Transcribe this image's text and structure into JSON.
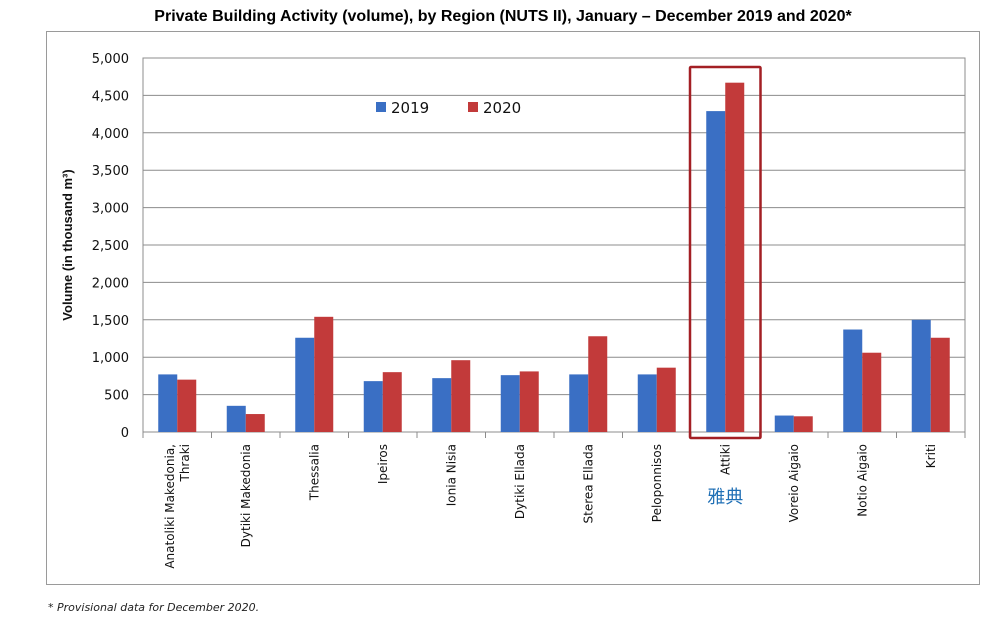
{
  "chart_data": {
    "type": "bar",
    "title": "Private Building Activity (volume), by Region (NUTS II), January – December 2019 and 2020*",
    "ylabel": "Volume (in thousand m³)",
    "xlabel": "",
    "ylim": [
      0,
      5000
    ],
    "yticks": [
      0,
      500,
      1000,
      1500,
      2000,
      2500,
      3000,
      3500,
      4000,
      4500,
      5000
    ],
    "ytick_labels": [
      "0",
      "500",
      "1,000",
      "1,500",
      "2,000",
      "2,500",
      "3,000",
      "3,500",
      "4,000",
      "4,500",
      "5,000"
    ],
    "grid": true,
    "legend_position": "top-left",
    "categories": [
      [
        "Anatoliki Makedonia,",
        "Thraki"
      ],
      [
        "Dytiki Makedonia"
      ],
      [
        "Thessalia"
      ],
      [
        "Ipeiros"
      ],
      [
        "Ionia Nisia"
      ],
      [
        "Dytiki Ellada"
      ],
      [
        "Sterea Ellada"
      ],
      [
        "Peloponnisos"
      ],
      [
        "Attiki"
      ],
      [
        "Voreio Aigaio"
      ],
      [
        "Notio Aigaio"
      ],
      [
        "Kriti"
      ]
    ],
    "series": [
      {
        "name": "2019",
        "color": "#3a6fc4",
        "values": [
          770,
          350,
          1260,
          680,
          720,
          760,
          770,
          770,
          4290,
          220,
          1370,
          1500
        ]
      },
      {
        "name": "2020",
        "color": "#c23a3a",
        "values": [
          700,
          240,
          1540,
          800,
          960,
          810,
          1280,
          860,
          4670,
          210,
          1060,
          1260
        ]
      }
    ],
    "highlight": {
      "category_index": 8,
      "color": "#a31f24"
    },
    "annotation": {
      "text": "雅典",
      "category_index": 8
    }
  },
  "footnote": "* Provisional data for December 2020."
}
